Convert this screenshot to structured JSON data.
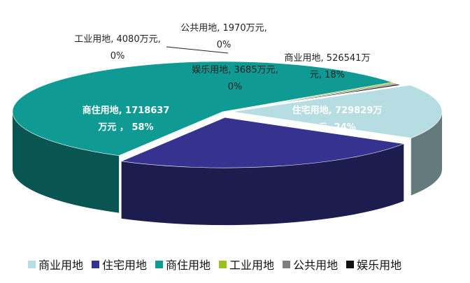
{
  "chart_data": {
    "type": "pie",
    "title": "",
    "three_d": true,
    "legend_position": "bottom",
    "slices": [
      {
        "name": "商业用地",
        "value": 526541,
        "percent": 18,
        "color": "#b6dde1",
        "label_lines": [
          "商业用地, 526541万",
          "元, 18%"
        ]
      },
      {
        "name": "住宅用地",
        "value": 729829,
        "percent": 24,
        "color": "#35338f",
        "label_lines": [
          "住宅用地, 729829万",
          "元, 24%"
        ]
      },
      {
        "name": "商住用地",
        "value": 1718637,
        "percent": 58,
        "color": "#0f9a94",
        "label_lines": [
          "商住用地, 1718637",
          "万元 ， 58%"
        ]
      },
      {
        "name": "工业用地",
        "value": 4080,
        "percent": 0,
        "color": "#99c11f",
        "label_lines": [
          "工业用地, 4080万元,",
          "0%"
        ]
      },
      {
        "name": "公共用地",
        "value": 1970,
        "percent": 0,
        "color": "#7f7f7f",
        "label_lines": [
          "公共用地, 1970万元,",
          "0%"
        ]
      },
      {
        "name": "娱乐用地",
        "value": 3685,
        "percent": 0,
        "color": "#111111",
        "label_lines": [
          "娱乐用地, 3685万元,",
          "0%"
        ]
      }
    ]
  }
}
